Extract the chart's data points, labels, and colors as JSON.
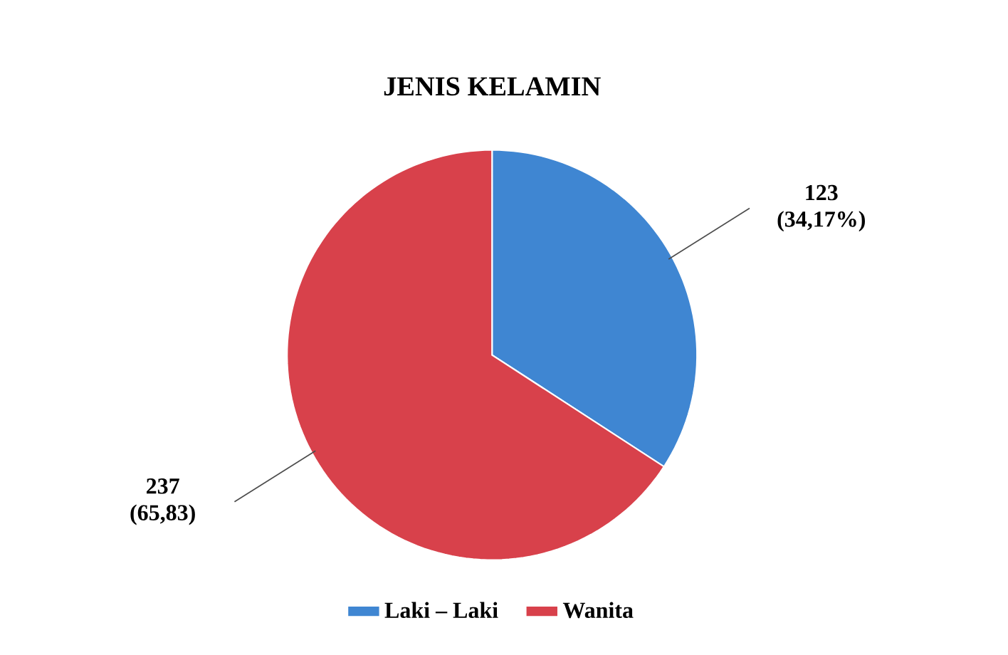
{
  "chart_data": {
    "type": "pie",
    "title": "JENIS KELAMIN",
    "categories": [
      "Laki – Laki",
      "Wanita"
    ],
    "values": [
      123,
      237
    ],
    "colors": [
      "#3f86d2",
      "#d8414b"
    ],
    "value_labels": [
      "123 (34,17%)",
      "237 (65,83)"
    ],
    "legend": "bottom"
  }
}
